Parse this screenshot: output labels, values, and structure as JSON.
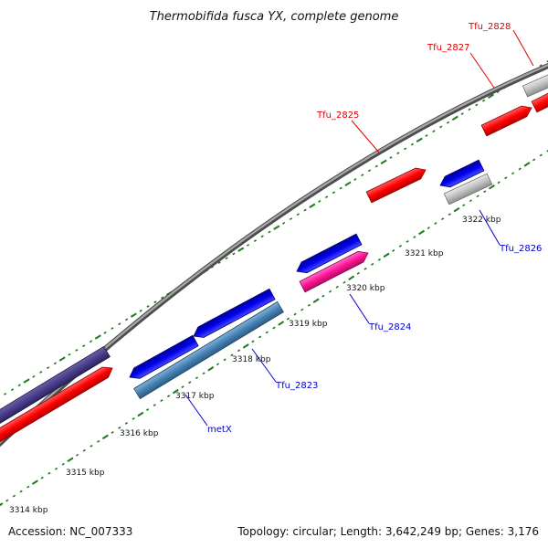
{
  "title": "Thermobifida fusca YX, complete genome",
  "footer": {
    "accession": "Accession: NC_007333",
    "summary": "Topology: circular; Length: 3,642,249 bp; Genes: 3,176"
  },
  "colors": {
    "backbone": "#8a8a8a",
    "tick": "#1a7a1a",
    "forward_label": "#e00000",
    "reverse_label": "#0000cc"
  },
  "kbp_labels": [
    "3314 kbp",
    "3315 kbp",
    "3316 kbp",
    "3317 kbp",
    "3318 kbp",
    "3319 kbp",
    "3320 kbp",
    "3321 kbp",
    "3322 kbp"
  ],
  "gene_labels": {
    "tfu_2828": "Tfu_2828",
    "tfu_2827": "Tfu_2827",
    "tfu_2825": "Tfu_2825",
    "tfu_2826": "Tfu_2826",
    "tfu_2824": "Tfu_2824",
    "tfu_2823": "Tfu_2823",
    "metx": "metX"
  }
}
